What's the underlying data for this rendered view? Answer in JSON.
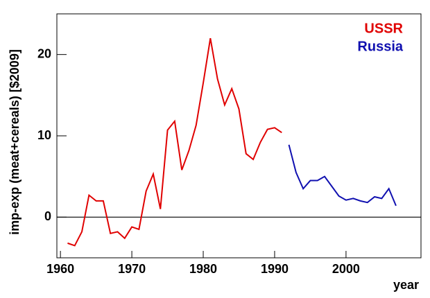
{
  "chart_data": {
    "type": "line",
    "y_label": "imp-exp (meat+cereals) [$2009]",
    "x_label": "year",
    "x_ussr": [
      1961,
      1962,
      1963,
      1964,
      1965,
      1966,
      1967,
      1968,
      1969,
      1970,
      1971,
      1972,
      1973,
      1974,
      1975,
      1976,
      1977,
      1978,
      1979,
      1980,
      1981,
      1982,
      1983,
      1984,
      1985,
      1986,
      1987,
      1988,
      1989,
      1990,
      1991
    ],
    "x_russia": [
      1992,
      1993,
      1994,
      1995,
      1996,
      1997,
      1998,
      1999,
      2000,
      2001,
      2002,
      2003,
      2004,
      2005,
      2006,
      2007
    ],
    "series": [
      {
        "name": "USSR",
        "color": "#e00000",
        "x_key": "x_ussr",
        "values": [
          -3.2,
          -3.5,
          -1.8,
          2.7,
          2.0,
          2.0,
          -2.0,
          -1.8,
          -2.6,
          -1.2,
          -1.5,
          3.2,
          5.3,
          1.0,
          10.7,
          11.8,
          5.8,
          8.2,
          11.3,
          16.5,
          22.0,
          17.0,
          13.8,
          15.8,
          13.3,
          7.8,
          7.1,
          9.2,
          10.8,
          11.0,
          10.4
        ]
      },
      {
        "name": "Russia",
        "color": "#1010b0",
        "x_key": "x_russia",
        "values": [
          8.9,
          5.5,
          3.5,
          4.5,
          4.5,
          5.0,
          3.8,
          2.6,
          2.1,
          2.3,
          2.0,
          1.8,
          2.5,
          2.3,
          3.5,
          1.4
        ]
      }
    ],
    "xlim": [
      1959.5,
      2010.5
    ],
    "xticks": [
      1960,
      1970,
      1980,
      1990,
      2000
    ],
    "ylim": [
      -5,
      25
    ],
    "yticks": [
      0,
      10,
      20
    ],
    "legend": "upper right"
  }
}
